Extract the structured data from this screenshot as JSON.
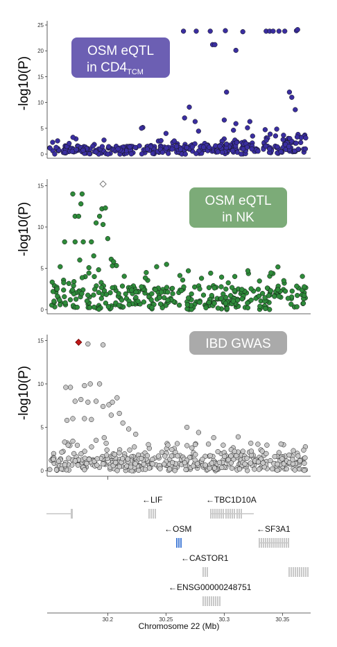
{
  "chart_data": [
    {
      "type": "scatter",
      "badge": {
        "line1": "OSM eQTL",
        "line2_main": "in CD4",
        "line2_sub": "TCM",
        "color": "#6c5fb3"
      },
      "ylabel": "-log10(P)",
      "yticks": [
        0,
        5,
        10,
        15,
        20,
        25
      ],
      "ylim": [
        -1,
        25.5
      ],
      "xlim": [
        30.148,
        30.373
      ],
      "point_color": "#3a2ea0",
      "points": [
        [
          30.265,
          23.8
        ],
        [
          30.276,
          23.8
        ],
        [
          30.288,
          23.8
        ],
        [
          30.301,
          23.9
        ],
        [
          30.316,
          23.7
        ],
        [
          30.336,
          23.8
        ],
        [
          30.339,
          23.8
        ],
        [
          30.342,
          23.8
        ],
        [
          30.347,
          23.8
        ],
        [
          30.352,
          23.8
        ],
        [
          30.362,
          23.9
        ],
        [
          30.363,
          24.1
        ],
        [
          30.29,
          21.2
        ],
        [
          30.292,
          21.2
        ],
        [
          30.31,
          20.1
        ],
        [
          30.302,
          12.0
        ],
        [
          30.356,
          12.0
        ],
        [
          30.358,
          11.0
        ],
        [
          30.27,
          9.1
        ],
        [
          30.3,
          6.6
        ],
        [
          30.31,
          5.9
        ],
        [
          30.361,
          8.6
        ],
        [
          30.266,
          7.0
        ],
        [
          30.275,
          6.3
        ],
        [
          30.322,
          6.3
        ]
      ]
    },
    {
      "type": "scatter",
      "badge": {
        "line1": "OSM eQTL",
        "line2": "in NK",
        "color": "#7cab78"
      },
      "ylabel": "-log10(P)",
      "yticks": [
        0,
        5,
        10,
        15
      ],
      "ylim": [
        -0.6,
        15.6
      ],
      "xlim": [
        30.148,
        30.373
      ],
      "point_color": "#2e8b3a",
      "lead_snp": [
        30.196,
        15.2
      ],
      "points": [
        [
          30.17,
          14.0
        ],
        [
          30.178,
          14.0
        ],
        [
          30.177,
          12.8
        ],
        [
          30.172,
          11.3
        ],
        [
          30.175,
          11.3
        ],
        [
          30.193,
          11.3
        ],
        [
          30.195,
          12.2
        ],
        [
          30.198,
          12.3
        ],
        [
          30.19,
          10.5
        ],
        [
          30.196,
          10.3
        ],
        [
          30.163,
          8.2
        ],
        [
          30.172,
          8.2
        ],
        [
          30.179,
          8.2
        ],
        [
          30.186,
          8.2
        ],
        [
          30.2,
          8.6
        ],
        [
          30.176,
          6.0
        ],
        [
          30.188,
          6.5
        ],
        [
          30.203,
          6.1
        ],
        [
          30.204,
          5.3
        ],
        [
          30.205,
          5.8
        ]
      ]
    },
    {
      "type": "scatter",
      "badge": {
        "line1": "IBD GWAS",
        "color": "#aaaaaa"
      },
      "ylabel": "-log10(P)",
      "yticks": [
        0,
        5,
        10,
        15
      ],
      "ylim": [
        -0.6,
        15.6
      ],
      "xlim": [
        30.148,
        30.373
      ],
      "point_color": "#c8c8c8",
      "lead_snp": [
        30.175,
        14.8
      ],
      "points": [
        [
          30.183,
          14.6
        ],
        [
          30.196,
          14.5
        ],
        [
          30.164,
          9.6
        ],
        [
          30.168,
          9.6
        ],
        [
          30.18,
          9.8
        ],
        [
          30.185,
          10.0
        ],
        [
          30.193,
          10.0
        ],
        [
          30.172,
          8.0
        ],
        [
          30.177,
          8.2
        ],
        [
          30.183,
          7.9
        ],
        [
          30.19,
          8.0
        ],
        [
          30.196,
          7.4
        ],
        [
          30.201,
          7.6
        ],
        [
          30.204,
          7.9
        ],
        [
          30.208,
          8.4
        ],
        [
          30.165,
          5.8
        ],
        [
          30.17,
          6.0
        ],
        [
          30.18,
          6.0
        ],
        [
          30.186,
          5.9
        ],
        [
          30.203,
          6.4
        ],
        [
          30.21,
          6.6
        ],
        [
          30.213,
          5.5
        ],
        [
          30.218,
          4.8
        ],
        [
          30.224,
          4.2
        ],
        [
          30.268,
          5.0
        ],
        [
          30.278,
          4.4
        ],
        [
          30.291,
          3.8
        ],
        [
          30.312,
          3.9
        ],
        [
          30.163,
          3.3
        ],
        [
          30.17,
          3.4
        ],
        [
          30.19,
          3.5
        ],
        [
          30.197,
          3.8
        ]
      ]
    }
  ],
  "genes": [
    {
      "label": "←LIF",
      "row": 0,
      "color": "#c8c8c8"
    },
    {
      "label": "←TBC1D10A",
      "row": 0,
      "color": "#c8c8c8"
    },
    {
      "label": "←OSM",
      "row": 1,
      "color": "#4a80d8"
    },
    {
      "label": "←SF3A1",
      "row": 1,
      "color": "#c8c8c8"
    },
    {
      "label": "←CASTOR1",
      "row": 2,
      "color": "#c8c8c8"
    },
    {
      "label": "←ENSG00000248751",
      "row": 3,
      "color": "#c8c8c8"
    }
  ],
  "xaxis": {
    "ticks": [
      30.2,
      30.25,
      30.3,
      30.35
    ],
    "tick_labels": [
      "30.2",
      "30.25",
      "30.3",
      "30.35"
    ],
    "label": "Chromosome 22 (Mb)"
  }
}
